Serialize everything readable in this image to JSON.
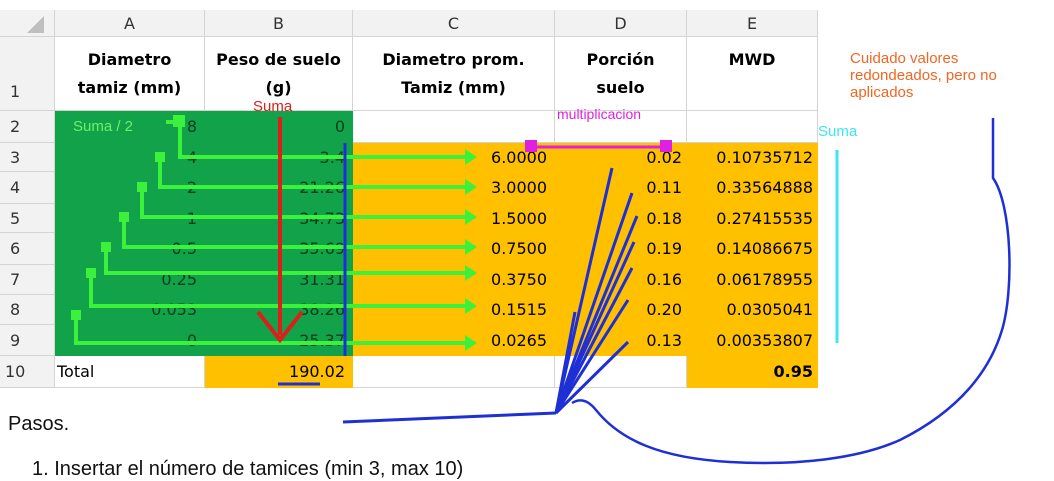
{
  "columns": [
    "A",
    "B",
    "C",
    "D",
    "E"
  ],
  "rows": [
    "1",
    "2",
    "3",
    "4",
    "5",
    "6",
    "7",
    "8",
    "9",
    "10"
  ],
  "headers": {
    "a": [
      "Diametro",
      "tamiz (mm)"
    ],
    "b": [
      "Peso de suelo",
      "(g)"
    ],
    "c": [
      "Diametro prom.",
      "Tamiz (mm)"
    ],
    "d": [
      "Porción",
      "suelo"
    ],
    "e": [
      "MWD"
    ]
  },
  "colA": [
    "8",
    "4",
    "2",
    "1",
    "0.5",
    "0.25",
    "0.053",
    "0"
  ],
  "colB": [
    "0",
    "3.4",
    "21.26",
    "34.73",
    "35.69",
    "31.31",
    "38.26",
    "25.37"
  ],
  "colC": [
    "6.0000",
    "3.0000",
    "1.5000",
    "0.7500",
    "0.3750",
    "0.1515",
    "0.0265"
  ],
  "colD": [
    "0.02",
    "0.11",
    "0.18",
    "0.19",
    "0.16",
    "0.20",
    "0.13"
  ],
  "colE": [
    "0.10735712",
    "0.33564888",
    "0.27415535",
    "0.14086675",
    "0.06178955",
    "0.0305041",
    "0.00353807"
  ],
  "total": {
    "label": "Total",
    "b": "190.02",
    "e": "0.95"
  },
  "annotations": {
    "suma_red": "Suma",
    "suma_half": "Suma / 2",
    "multiplicacion": "multiplicacion",
    "suma_cyan": "Suma",
    "cuidado": [
      "Cuidado valores",
      "redondeados, pero no",
      "aplicados"
    ]
  },
  "pasos": "Pasos.",
  "step1": "1.   Insertar el número de tamices (min 3, max 10)",
  "colors": {
    "green_fill": "#11a24a",
    "orange_fill": "#ffc000",
    "arrow_green": "#3cf13c",
    "arrow_red": "#e21b1b",
    "magenta": "#e020e0",
    "blue": "#1f2fd6",
    "cyan": "#3ee6f0",
    "note_orange": "#f26522"
  }
}
